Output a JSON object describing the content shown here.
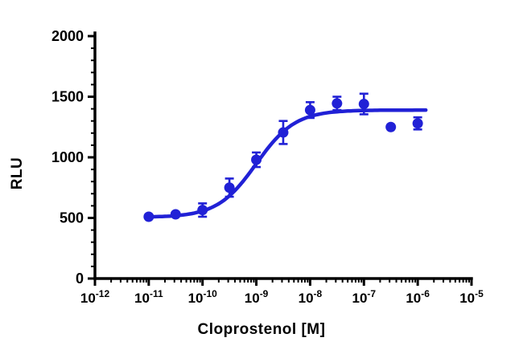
{
  "chart_data": {
    "type": "scatter",
    "title": "",
    "xlabel": "Cloprostenol [M]",
    "ylabel": "RLU",
    "x_scale": "log",
    "x_tick_exponents": [
      -12,
      -11,
      -10,
      -9,
      -8,
      -7,
      -6,
      -5
    ],
    "xlim_exponents": [
      -12,
      -5
    ],
    "ylim": [
      0,
      2000
    ],
    "y_major_ticks": [
      0,
      500,
      1000,
      1500,
      2000
    ],
    "y_minor_step": 100,
    "grid": "off",
    "legend": "none",
    "marker_color": "#2121d6",
    "curve_color": "#2121d6",
    "axis_color": "#000000",
    "points": [
      {
        "x": 1e-11,
        "y": 510,
        "err": 0
      },
      {
        "x": 3.16e-11,
        "y": 530,
        "err": 0
      },
      {
        "x": 1e-10,
        "y": 565,
        "err": 55
      },
      {
        "x": 3.16e-10,
        "y": 750,
        "err": 75
      },
      {
        "x": 1e-09,
        "y": 980,
        "err": 60
      },
      {
        "x": 3.16e-09,
        "y": 1205,
        "err": 95
      },
      {
        "x": 1e-08,
        "y": 1390,
        "err": 65
      },
      {
        "x": 3.16e-08,
        "y": 1445,
        "err": 55
      },
      {
        "x": 1e-07,
        "y": 1440,
        "err": 85
      },
      {
        "x": 3.16e-07,
        "y": 1250,
        "err": 0
      },
      {
        "x": 1e-06,
        "y": 1280,
        "err": 50
      }
    ],
    "fit": {
      "model": "4PL",
      "bottom": 505,
      "top": 1390,
      "log_ec50": -9.0,
      "hill": 1.2,
      "draw_range_log": [
        -11.05,
        -5.85
      ]
    }
  }
}
